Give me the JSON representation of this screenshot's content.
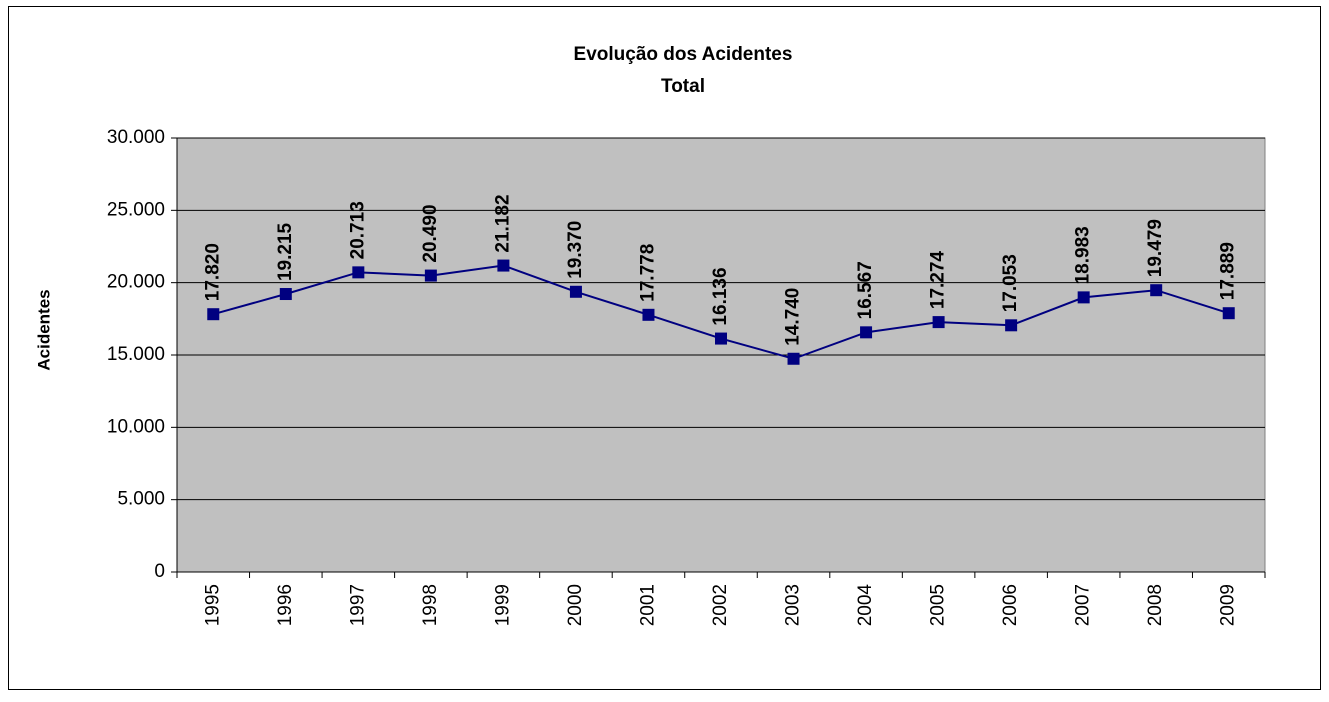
{
  "chart_data": {
    "type": "line",
    "title": "Evolução dos Acidentes",
    "subtitle": "Total",
    "y_label": "Acidentes",
    "categories": [
      "1995",
      "1996",
      "1997",
      "1998",
      "1999",
      "2000",
      "2001",
      "2002",
      "2003",
      "2004",
      "2005",
      "2006",
      "2007",
      "2008",
      "2009"
    ],
    "series": [
      {
        "name": "Total",
        "color": "#000080",
        "values": [
          17820,
          19215,
          20713,
          20490,
          21182,
          19370,
          17778,
          16136,
          14740,
          16567,
          17274,
          17053,
          18983,
          19479,
          17889
        ],
        "value_labels": [
          "17.820",
          "19.215",
          "20.713",
          "20.490",
          "21.182",
          "19.370",
          "17.778",
          "16.136",
          "14.740",
          "16.567",
          "17.274",
          "17.053",
          "18.983",
          "19.479",
          "17.889"
        ]
      }
    ],
    "ylim": [
      0,
      30000
    ],
    "yticks": [
      0,
      {
        "value": 5000,
        "label": "5.000"
      },
      {
        "value": 10000,
        "label": "10.000"
      },
      {
        "value": 15000,
        "label": "15.000"
      },
      {
        "value": 20000,
        "label": "20.000"
      },
      {
        "value": 25000,
        "label": "25.000"
      },
      {
        "value": 30000,
        "label": "30.000"
      }
    ],
    "grid": true,
    "plot_background": "#c0c0c0"
  }
}
